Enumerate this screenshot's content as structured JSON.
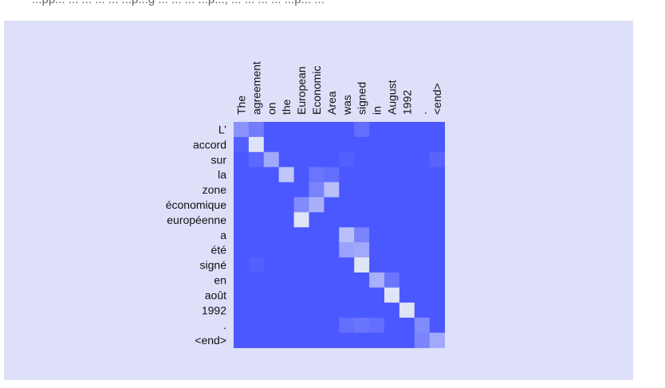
{
  "caption": "...pp... ...  ... ... ... ...p...g ... ... ... ...p..., ... ... ... ... ...p... ...",
  "colors": {
    "panel_background": "#dedff9",
    "cell_low": "#4b58ff",
    "cell_high": "#e8ebf7"
  },
  "chart_data": {
    "type": "heatmap",
    "title": "",
    "xlabel": "",
    "ylabel": "",
    "x": [
      "The",
      "agreement",
      "on",
      "the",
      "European",
      "Economic",
      "Area",
      "was",
      "signed",
      "in",
      "August",
      "1992",
      ".",
      "<end>"
    ],
    "y": [
      "L’",
      "accord",
      "sur",
      "la",
      "zone",
      "économique",
      "européenne",
      "a",
      "été",
      "signé",
      "en",
      "août",
      "1992",
      ".",
      "<end>"
    ],
    "value_range": [
      0,
      1
    ],
    "values": [
      [
        0.4,
        0.25,
        0.0,
        0.0,
        0.0,
        0.0,
        0.0,
        0.0,
        0.15,
        0.0,
        0.0,
        0.0,
        0.0,
        0.0
      ],
      [
        0.05,
        0.95,
        0.0,
        0.0,
        0.0,
        0.0,
        0.0,
        0.0,
        0.0,
        0.0,
        0.0,
        0.0,
        0.0,
        0.0
      ],
      [
        0.0,
        0.1,
        0.55,
        0.0,
        0.0,
        0.0,
        0.0,
        0.05,
        0.0,
        0.0,
        0.0,
        0.0,
        0.0,
        0.08
      ],
      [
        0.0,
        0.0,
        0.0,
        0.75,
        0.0,
        0.2,
        0.15,
        0.0,
        0.0,
        0.0,
        0.0,
        0.0,
        0.0,
        0.0
      ],
      [
        0.0,
        0.0,
        0.0,
        0.0,
        0.0,
        0.3,
        0.7,
        0.0,
        0.0,
        0.0,
        0.0,
        0.0,
        0.0,
        0.0
      ],
      [
        0.0,
        0.0,
        0.0,
        0.0,
        0.35,
        0.6,
        0.0,
        0.0,
        0.0,
        0.0,
        0.0,
        0.0,
        0.0,
        0.0
      ],
      [
        0.0,
        0.0,
        0.0,
        0.0,
        0.95,
        0.0,
        0.0,
        0.0,
        0.0,
        0.0,
        0.0,
        0.0,
        0.0,
        0.0
      ],
      [
        0.0,
        0.0,
        0.0,
        0.0,
        0.0,
        0.0,
        0.0,
        0.7,
        0.3,
        0.0,
        0.0,
        0.0,
        0.0,
        0.0
      ],
      [
        0.0,
        0.0,
        0.0,
        0.0,
        0.0,
        0.0,
        0.0,
        0.5,
        0.55,
        0.0,
        0.0,
        0.0,
        0.0,
        0.0
      ],
      [
        0.0,
        0.05,
        0.0,
        0.0,
        0.0,
        0.0,
        0.0,
        0.0,
        0.95,
        0.0,
        0.0,
        0.0,
        0.0,
        0.0
      ],
      [
        0.0,
        0.0,
        0.0,
        0.0,
        0.0,
        0.0,
        0.0,
        0.0,
        0.0,
        0.6,
        0.2,
        0.0,
        0.0,
        0.0
      ],
      [
        0.0,
        0.0,
        0.0,
        0.0,
        0.0,
        0.0,
        0.0,
        0.0,
        0.0,
        0.0,
        0.95,
        0.0,
        0.0,
        0.0
      ],
      [
        0.0,
        0.0,
        0.0,
        0.0,
        0.0,
        0.0,
        0.0,
        0.0,
        0.0,
        0.0,
        0.0,
        0.95,
        0.0,
        0.0
      ],
      [
        0.0,
        0.0,
        0.0,
        0.0,
        0.0,
        0.0,
        0.0,
        0.15,
        0.2,
        0.15,
        0.0,
        0.0,
        0.35,
        0.0
      ],
      [
        0.0,
        0.0,
        0.0,
        0.0,
        0.0,
        0.0,
        0.0,
        0.0,
        0.0,
        0.0,
        0.0,
        0.0,
        0.3,
        0.55
      ]
    ]
  }
}
